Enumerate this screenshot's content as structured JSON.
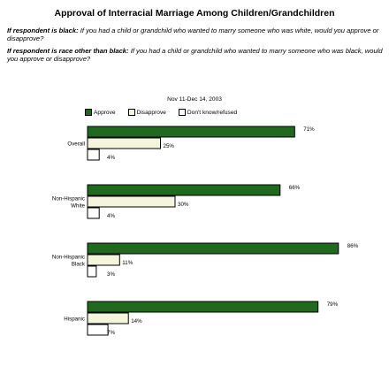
{
  "chart_data": {
    "type": "bar",
    "orientation": "horizontal",
    "title": "Approval of Interracial Marriage Among Children/Grandchildren",
    "question_black_prefix": "If respondent is black:",
    "question_black": "If you had a child or grandchild who wanted to marry someone who was white, would you approve or disapprove?",
    "question_other_prefix": "If respondent is race other than black:",
    "question_other": "If you had a child or grandchild who wanted to marry someone who was black, would you approve or disapprove?",
    "date": "Nov 11-Dec 14, 2003",
    "categories": [
      "Overall",
      "Non-Hispanic|White",
      "Non-Hispanic|Black",
      "Hispanic"
    ],
    "series": [
      {
        "name": "Approve",
        "values": [
          71,
          66,
          86,
          79
        ],
        "color": "#1e6b1e"
      },
      {
        "name": "Disapprove",
        "values": [
          25,
          30,
          11,
          14
        ],
        "color": "#f5f5dc"
      },
      {
        "name": "Don't know/refused",
        "values": [
          4,
          4,
          3,
          7
        ],
        "color": "#ffffff"
      }
    ],
    "value_labels": [
      [
        "71%",
        "25%",
        "4%"
      ],
      [
        "66%",
        "30%",
        "4%"
      ],
      [
        "86%",
        "11%",
        "3%"
      ],
      [
        "79%",
        "14%",
        "7%"
      ]
    ],
    "xlim": [
      0,
      100
    ],
    "grid": false,
    "legend_position": "top"
  }
}
